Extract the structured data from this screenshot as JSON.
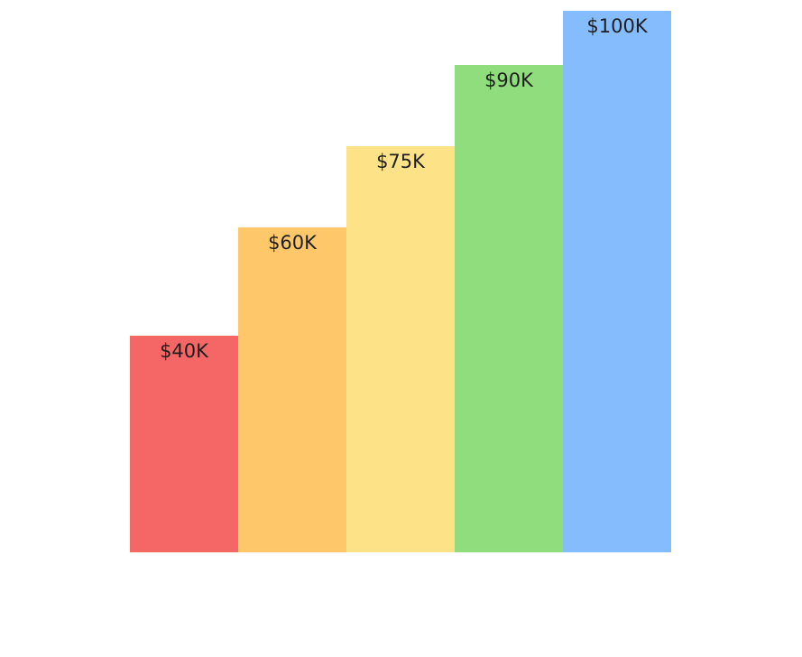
{
  "chart_data": {
    "type": "bar",
    "categories": [
      "",
      "",
      "",
      "",
      ""
    ],
    "values": [
      40,
      60,
      75,
      90,
      100
    ],
    "data_labels": [
      "$40K",
      "$60K",
      "$75K",
      "$90K",
      "$100K"
    ],
    "bar_colors": [
      "#F56767",
      "#FDC76A",
      "#FDE288",
      "#8FDD7D",
      "#85BCFD"
    ],
    "ylim": [
      0,
      100
    ],
    "title": "",
    "xlabel": "",
    "ylabel": "",
    "grid": false,
    "legend": "none"
  }
}
